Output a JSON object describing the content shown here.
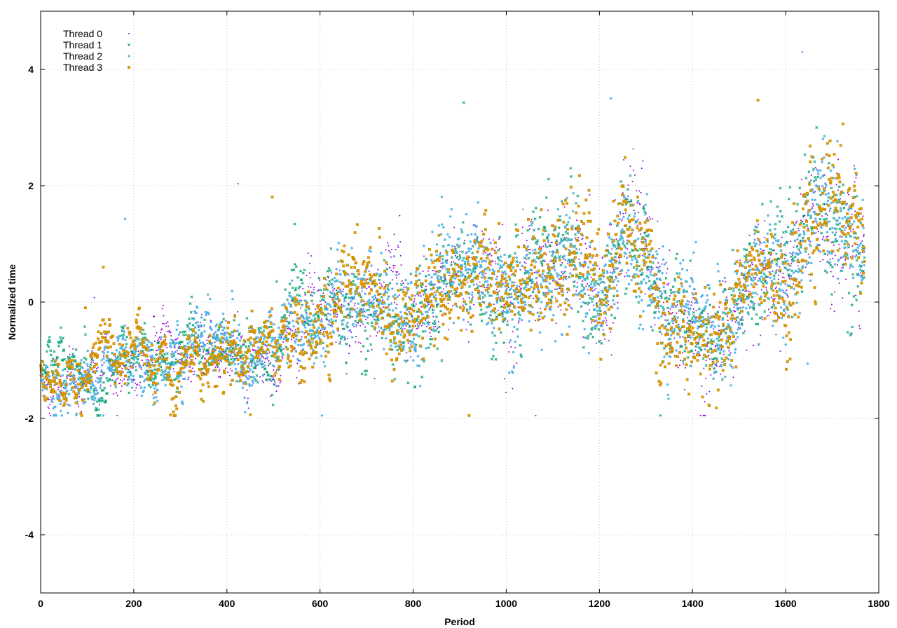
{
  "chart_data": {
    "type": "scatter",
    "title": "",
    "xlabel": "Period",
    "ylabel": "Normalized time",
    "xlim": [
      0,
      1800
    ],
    "ylim": [
      -5,
      5
    ],
    "x_ticks": [
      0,
      200,
      400,
      600,
      800,
      1000,
      1200,
      1400,
      1600,
      1800
    ],
    "y_ticks": [
      -4,
      -2,
      0,
      2,
      4
    ],
    "x_tick_labels": [
      "0",
      "200",
      "400",
      "600",
      "800",
      "1000",
      "1200",
      "1400",
      "1600",
      "1800"
    ],
    "y_tick_labels": [
      "-4",
      "-2",
      "0",
      "2",
      "4"
    ],
    "grid": true,
    "legend_position": "top-left",
    "n_points_per_series": 1770,
    "series": [
      {
        "name": "Thread 0",
        "color": "#9400d3",
        "marker": "dot"
      },
      {
        "name": "Thread 1",
        "color": "#009e73",
        "marker": "cross"
      },
      {
        "name": "Thread 2",
        "color": "#56b4e9",
        "marker": "star"
      },
      {
        "name": "Thread 3",
        "color": "#e69f00",
        "marker": "square"
      }
    ],
    "trend": {
      "x": [
        0,
        100,
        200,
        300,
        400,
        500,
        550,
        600,
        650,
        700,
        800,
        900,
        1000,
        1100,
        1150,
        1200,
        1250,
        1300,
        1350,
        1400,
        1450,
        1500,
        1550,
        1600,
        1650,
        1700,
        1770
      ],
      "y": [
        -1.3,
        -1.25,
        -1.0,
        -0.85,
        -0.75,
        -0.85,
        -0.3,
        -0.4,
        0.0,
        0.2,
        -0.3,
        0.5,
        0.3,
        0.6,
        1.0,
        -0.2,
        1.1,
        1.0,
        -0.4,
        -0.3,
        -0.7,
        0.2,
        0.6,
        0.3,
        1.5,
        1.5,
        1.0
      ],
      "spread": [
        0.15,
        0.2,
        0.2,
        0.25,
        0.3,
        0.35,
        0.4,
        0.4,
        0.5,
        0.5,
        0.6,
        0.6,
        0.6,
        0.7,
        0.7,
        0.7,
        0.7,
        0.7,
        0.6,
        0.6,
        0.6,
        0.6,
        0.6,
        0.7,
        0.8,
        0.8,
        0.8
      ]
    }
  }
}
